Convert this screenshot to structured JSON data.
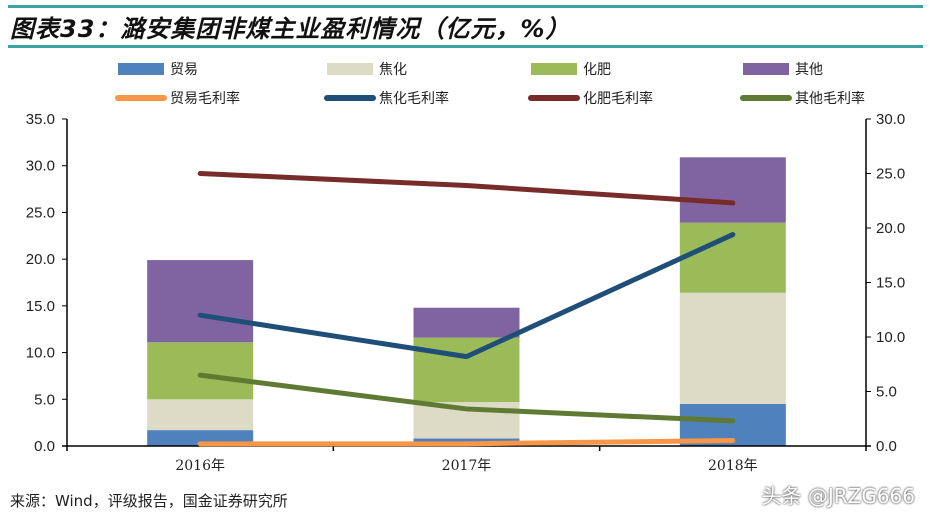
{
  "title": "图表33：潞安集团非煤主业盈利情况（亿元，%）",
  "source": "来源：Wind，评级报告，国金证券研究所",
  "watermark": "头条 @JRZG666",
  "chart_data": {
    "type": "bar",
    "stacked": true,
    "categories": [
      "2016年",
      "2017年",
      "2018年"
    ],
    "series": [
      {
        "name": "贸易",
        "kind": "bar",
        "axis": "left",
        "color": "#4f81bd",
        "values": [
          1.7,
          0.8,
          4.5
        ]
      },
      {
        "name": "焦化",
        "kind": "bar",
        "axis": "left",
        "color": "#dddac6",
        "values": [
          3.3,
          3.9,
          11.9
        ]
      },
      {
        "name": "化肥",
        "kind": "bar",
        "axis": "left",
        "color": "#9bbb59",
        "values": [
          6.1,
          6.9,
          7.5
        ]
      },
      {
        "name": "其他",
        "kind": "bar",
        "axis": "left",
        "color": "#8064a2",
        "values": [
          8.8,
          3.2,
          7.0
        ]
      },
      {
        "name": "贸易毛利率",
        "kind": "line",
        "axis": "right",
        "color": "#f79646",
        "values": [
          0.2,
          0.2,
          0.5
        ]
      },
      {
        "name": "焦化毛利率",
        "kind": "line",
        "axis": "right",
        "color": "#1f4e79",
        "values": [
          12.0,
          8.2,
          19.4
        ]
      },
      {
        "name": "化肥毛利率",
        "kind": "line",
        "axis": "right",
        "color": "#772c2a",
        "values": [
          25.0,
          23.9,
          22.3
        ]
      },
      {
        "name": "其他毛利率",
        "kind": "line",
        "axis": "right",
        "color": "#5e7a33",
        "values": [
          6.5,
          3.4,
          2.3
        ]
      }
    ],
    "ylim_left": [
      0,
      35
    ],
    "yticks_left": [
      "0.0",
      "5.0",
      "10.0",
      "15.0",
      "20.0",
      "25.0",
      "30.0",
      "35.0"
    ],
    "ylim_right": [
      0,
      30
    ],
    "yticks_right": [
      "0.0",
      "5.0",
      "10.0",
      "15.0",
      "20.0",
      "25.0",
      "30.0"
    ],
    "grid": false,
    "legend": "top"
  }
}
